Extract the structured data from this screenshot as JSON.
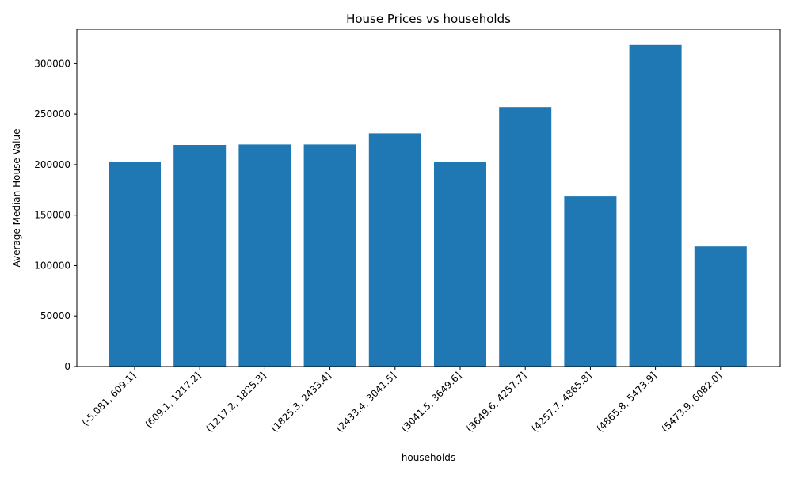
{
  "chart_data": {
    "type": "bar",
    "title": "House Prices vs households",
    "xlabel": "households",
    "ylabel": "Average Median House Value",
    "categories": [
      "(-5.081, 609.1]",
      "(609.1, 1217.2]",
      "(1217.2, 1825.3]",
      "(1825.3, 2433.4]",
      "(2433.4, 3041.5]",
      "(3041.5, 3649.6]",
      "(3649.6, 4257.7]",
      "(4257.7, 4865.8]",
      "(4865.8, 5473.9]",
      "(5473.9, 6082.0]"
    ],
    "values": [
      203000,
      219500,
      220000,
      220000,
      231000,
      203000,
      257000,
      168500,
      318500,
      119000
    ],
    "ylim": [
      0,
      334000
    ],
    "yticks": [
      0,
      50000,
      100000,
      150000,
      200000,
      250000,
      300000
    ],
    "bar_color": "#1f77b4",
    "grid": false,
    "legend": false
  }
}
